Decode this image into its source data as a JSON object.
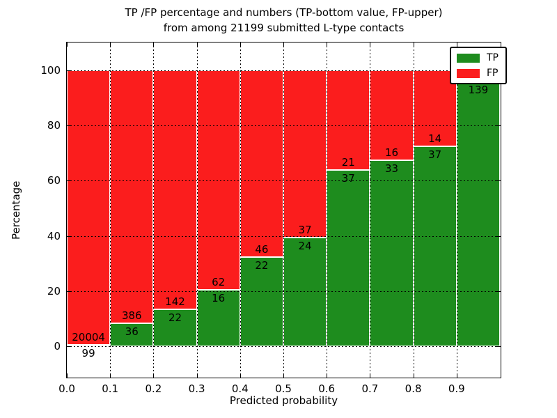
{
  "chart_data": {
    "type": "bar",
    "stacked": true,
    "units": "percent",
    "title_line1": "TP /FP percentage and numbers (TP-bottom value, FP-upper)",
    "title_line2": "from among 21199 submitted L-type contacts",
    "total_submitted": 21199,
    "xlabel": "Predicted probability",
    "ylabel": "Percentage",
    "xlim": [
      0.0,
      1.0
    ],
    "ylim": [
      -11,
      110
    ],
    "bar_width": 0.1,
    "grid": true,
    "legend_position": "upper right",
    "xticks": [
      {
        "value": 0.0,
        "label": "0.0"
      },
      {
        "value": 0.1,
        "label": "0.1"
      },
      {
        "value": 0.2,
        "label": "0.2"
      },
      {
        "value": 0.3,
        "label": "0.3"
      },
      {
        "value": 0.4,
        "label": "0.4"
      },
      {
        "value": 0.5,
        "label": "0.5"
      },
      {
        "value": 0.6,
        "label": "0.6"
      },
      {
        "value": 0.7,
        "label": "0.7"
      },
      {
        "value": 0.8,
        "label": "0.8"
      },
      {
        "value": 0.9,
        "label": "0.9"
      }
    ],
    "yticks": [
      {
        "value": 0,
        "label": "0"
      },
      {
        "value": 20,
        "label": "20"
      },
      {
        "value": 40,
        "label": "40"
      },
      {
        "value": 60,
        "label": "60"
      },
      {
        "value": 80,
        "label": "80"
      },
      {
        "value": 100,
        "label": "100"
      }
    ],
    "series": [
      {
        "name": "TP",
        "color": "#1e8c1e"
      },
      {
        "name": "FP",
        "color": "#fb1d1d"
      }
    ],
    "bars": [
      {
        "x0": 0.0,
        "tp": 99,
        "fp": 20004,
        "tp_pct": 0.49
      },
      {
        "x0": 0.1,
        "tp": 36,
        "fp": 386,
        "tp_pct": 8.53
      },
      {
        "x0": 0.2,
        "tp": 22,
        "fp": 142,
        "tp_pct": 13.41
      },
      {
        "x0": 0.3,
        "tp": 16,
        "fp": 62,
        "tp_pct": 20.51
      },
      {
        "x0": 0.4,
        "tp": 22,
        "fp": 46,
        "tp_pct": 32.35
      },
      {
        "x0": 0.5,
        "tp": 24,
        "fp": 37,
        "tp_pct": 39.34
      },
      {
        "x0": 0.6,
        "tp": 37,
        "fp": 21,
        "tp_pct": 63.79
      },
      {
        "x0": 0.7,
        "tp": 33,
        "fp": 16,
        "tp_pct": 67.35
      },
      {
        "x0": 0.8,
        "tp": 37,
        "fp": 14,
        "tp_pct": 72.55
      },
      {
        "x0": 0.9,
        "tp": 139,
        "fp": null,
        "tp_pct": 95.9
      }
    ]
  }
}
